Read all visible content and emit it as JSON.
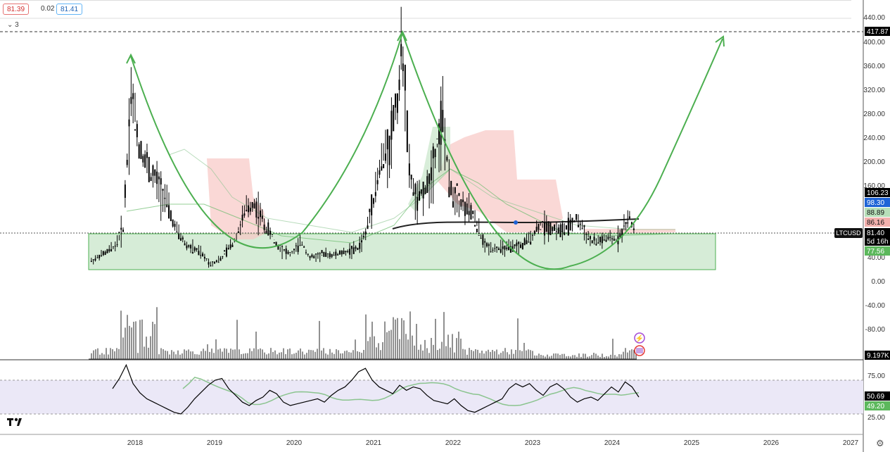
{
  "header": {
    "bid_price": "81.39",
    "spread": "0.02",
    "ask_price": "81.41",
    "indicators_count": "3"
  },
  "colors": {
    "candle": "#000000",
    "arc": "#4caf50",
    "support_box_fill": "#c8e6c9",
    "support_box_stroke": "#4caf50",
    "neckline": "#222222",
    "cloud_bear": "#f8c8c4",
    "cloud_bull": "#c8e6c9",
    "rsi_band": "#ebe8f7",
    "rsi_line": "#000000",
    "rsi_ma": "#8bc48f",
    "label_black": "#000000",
    "label_blue": "#1e63d6",
    "label_green": "#5cb85c",
    "label_light_green": "#b7dfb9",
    "label_red": "#f3b0ad"
  },
  "chart_data": {
    "type": "candlestick",
    "symbol": "LTCUSD",
    "timeframe": "5d",
    "price_axis": {
      "ticks": [
        "440.00",
        "400.00",
        "360.00",
        "320.00",
        "280.00",
        "240.00",
        "200.00",
        "160.00",
        "40.00",
        "0.00",
        "-40.00",
        "-80.00"
      ],
      "ylim": [
        -120,
        450
      ]
    },
    "time_axis": {
      "ticks": [
        "2018",
        "2019",
        "2020",
        "2021",
        "2022",
        "2023",
        "2024",
        "2025",
        "2026",
        "2027"
      ]
    },
    "price_labels": [
      {
        "value": "417.87",
        "style": "black"
      },
      {
        "value": "106.23",
        "style": "black"
      },
      {
        "value": "98.30",
        "style": "blue"
      },
      {
        "value": "88.89",
        "style": "light_green"
      },
      {
        "value": "86.16",
        "style": "red"
      },
      {
        "value": "81.40",
        "style": "black"
      },
      {
        "value": "5d 16h",
        "style": "black"
      },
      {
        "value": "77.56",
        "style": "green"
      },
      {
        "value": "9.197K",
        "style": "black"
      }
    ],
    "symbol_tag": "LTCUSD",
    "key_levels": {
      "horizontal_high": 417.87,
      "last_price": 81.4
    },
    "support_zone": {
      "low": 20,
      "high": 80,
      "from": "2017.5",
      "to": "2025.3"
    },
    "price_series": [
      {
        "date": "2017.45",
        "close": 35
      },
      {
        "date": "2017.6",
        "close": 45
      },
      {
        "date": "2017.75",
        "close": 60
      },
      {
        "date": "2017.85",
        "close": 90
      },
      {
        "date": "2017.95",
        "close": 320
      },
      {
        "date": "2018.05",
        "close": 230
      },
      {
        "date": "2018.2",
        "close": 180
      },
      {
        "date": "2018.35",
        "close": 150
      },
      {
        "date": "2018.5",
        "close": 90
      },
      {
        "date": "2018.65",
        "close": 60
      },
      {
        "date": "2018.8",
        "close": 50
      },
      {
        "date": "2018.95",
        "close": 30
      },
      {
        "date": "2019.1",
        "close": 40
      },
      {
        "date": "2019.25",
        "close": 70
      },
      {
        "date": "2019.4",
        "close": 120
      },
      {
        "date": "2019.5",
        "close": 130
      },
      {
        "date": "2019.65",
        "close": 90
      },
      {
        "date": "2019.8",
        "close": 60
      },
      {
        "date": "2019.95",
        "close": 45
      },
      {
        "date": "2020.1",
        "close": 65
      },
      {
        "date": "2020.2",
        "close": 40
      },
      {
        "date": "2020.35",
        "close": 45
      },
      {
        "date": "2020.5",
        "close": 45
      },
      {
        "date": "2020.65",
        "close": 50
      },
      {
        "date": "2020.8",
        "close": 55
      },
      {
        "date": "2020.9",
        "close": 80
      },
      {
        "date": "2021.0",
        "close": 140
      },
      {
        "date": "2021.1",
        "close": 200
      },
      {
        "date": "2021.2",
        "close": 230
      },
      {
        "date": "2021.3",
        "close": 310
      },
      {
        "date": "2021.37",
        "close": 390
      },
      {
        "date": "2021.45",
        "close": 180
      },
      {
        "date": "2021.55",
        "close": 130
      },
      {
        "date": "2021.7",
        "close": 170
      },
      {
        "date": "2021.8",
        "close": 230
      },
      {
        "date": "2021.87",
        "close": 280
      },
      {
        "date": "2021.95",
        "close": 160
      },
      {
        "date": "2022.1",
        "close": 130
      },
      {
        "date": "2022.25",
        "close": 110
      },
      {
        "date": "2022.4",
        "close": 60
      },
      {
        "date": "2022.55",
        "close": 55
      },
      {
        "date": "2022.7",
        "close": 55
      },
      {
        "date": "2022.85",
        "close": 60
      },
      {
        "date": "2022.95",
        "close": 70
      },
      {
        "date": "2023.1",
        "close": 95
      },
      {
        "date": "2023.25",
        "close": 90
      },
      {
        "date": "2023.4",
        "close": 85
      },
      {
        "date": "2023.55",
        "close": 105
      },
      {
        "date": "2023.65",
        "close": 85
      },
      {
        "date": "2023.75",
        "close": 65
      },
      {
        "date": "2023.9",
        "close": 70
      },
      {
        "date": "2024.05",
        "close": 70
      },
      {
        "date": "2024.15",
        "close": 90
      },
      {
        "date": "2024.22",
        "close": 105
      },
      {
        "date": "2024.3",
        "close": 81.4
      }
    ],
    "rsi": {
      "ticks": [
        "75.00",
        "50.69",
        "49.20",
        "25.00"
      ],
      "band": [
        30,
        70
      ],
      "last_value": 50.69,
      "ma_value": 49.2,
      "values": [
        60,
        72,
        88,
        66,
        55,
        48,
        44,
        40,
        36,
        32,
        30,
        38,
        48,
        56,
        64,
        70,
        72,
        60,
        52,
        44,
        40,
        46,
        50,
        58,
        54,
        44,
        40,
        42,
        44,
        46,
        48,
        44,
        52,
        58,
        62,
        70,
        80,
        84,
        70,
        62,
        58,
        54,
        64,
        58,
        62,
        60,
        52,
        46,
        44,
        42,
        48,
        40,
        34,
        32,
        36,
        40,
        44,
        48,
        60,
        66,
        62,
        66,
        58,
        52,
        62,
        66,
        60,
        50,
        44,
        48,
        50,
        46,
        54,
        62,
        56,
        68,
        62,
        50
      ]
    },
    "volume_axis_label": "9.197K"
  }
}
